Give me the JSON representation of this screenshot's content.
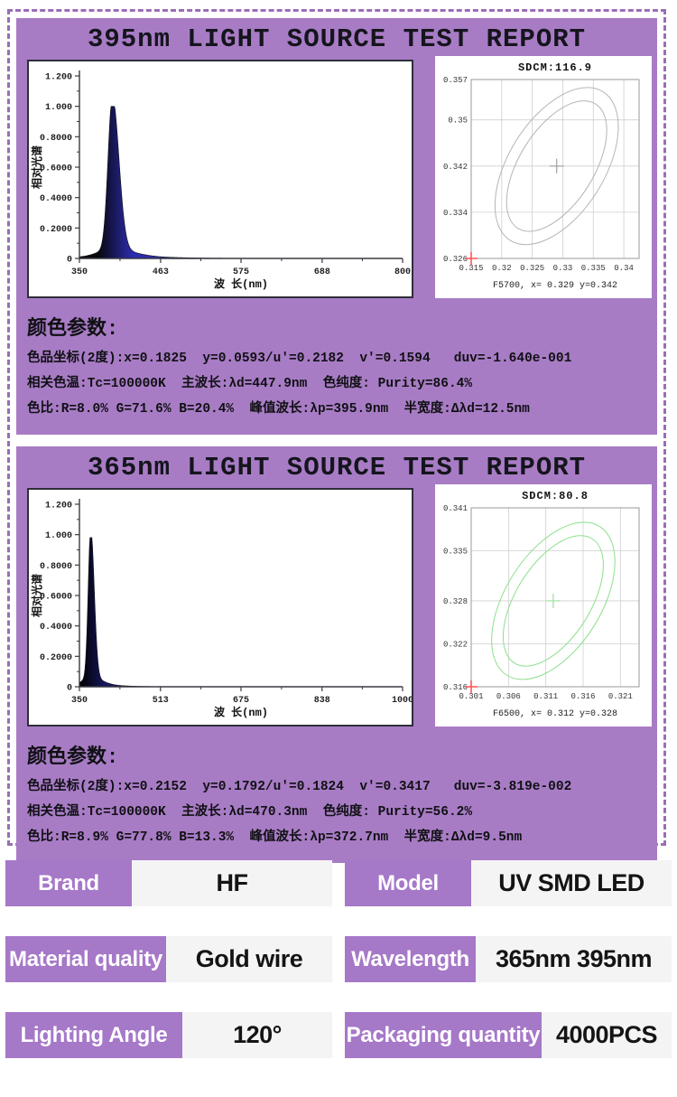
{
  "colors": {
    "section_purple": "#a87cc5",
    "table_label_purple": "#a678c8",
    "table_value_gray": "#f4f4f4",
    "dashed_border_purple": "#9b6db8"
  },
  "sections": [
    {
      "title": "395nm LIGHT SOURCE TEST REPORT",
      "params": {
        "heading": "颜色参数:",
        "lines": [
          "色品坐标(2度):x=0.1825  y=0.0593/u'=0.2182  v'=0.1594   duv=-1.640e-001",
          "相关色温:Tc=100000K  主波长:λd=447.9nm  色纯度: Purity=86.4%",
          "色比:R=8.0% G=71.6% B=20.4%  峰值波长:λp=395.9nm  半宽度:Δλd=12.5nm"
        ]
      }
    },
    {
      "title": "365nm LIGHT SOURCE TEST REPORT",
      "params": {
        "heading": "颜色参数:",
        "lines": [
          "色品坐标(2度):x=0.2152  y=0.1792/u'=0.1824  v'=0.3417   duv=-3.819e-002",
          "相关色温:Tc=100000K  主波长:λd=470.3nm  色纯度: Purity=56.2%",
          "色比:R=8.9% G=77.8% B=13.3%  峰值波长:λp=372.7nm  半宽度:Δλd=9.5nm"
        ]
      }
    }
  ],
  "chart_data": [
    {
      "id": "spec395",
      "type": "area",
      "title": "",
      "xlabel": "波 长(nm)",
      "ylabel": "相对光谱",
      "xlim": [
        350,
        800
      ],
      "xticks": [
        350,
        463,
        575,
        688,
        800
      ],
      "ylim": [
        0,
        1.2
      ],
      "yticks": [
        "0",
        "0.2000",
        "0.4000",
        "0.6000",
        "0.8000",
        "1.000",
        "1.200"
      ],
      "peak_nm": 395.9,
      "peak_value": 1.0,
      "fwhm_nm": 12.5,
      "sigma_left": 6,
      "sigma_right": 9,
      "fill": [
        "#07070d",
        "#2c2cae"
      ],
      "grid": false,
      "legend": "none"
    },
    {
      "id": "spec365",
      "type": "area",
      "title": "",
      "xlabel": "波 长(nm)",
      "ylabel": "相对光谱",
      "xlim": [
        350,
        1000
      ],
      "xticks": [
        350,
        513,
        675,
        838,
        1000
      ],
      "ylim": [
        0,
        1.2
      ],
      "yticks": [
        "0",
        "0.2000",
        "0.4000",
        "0.6000",
        "0.8000",
        "1.000",
        "1.200"
      ],
      "peak_nm": 372.7,
      "peak_value": 0.98,
      "fwhm_nm": 9.5,
      "sigma_left": 5,
      "sigma_right": 7,
      "fill": [
        "#000004",
        "#17175e"
      ],
      "grid": false,
      "legend": "none"
    },
    {
      "id": "cie395",
      "type": "scatter",
      "title": "SDCM:116.9",
      "sdcm": 116.9,
      "footer": "F5700, x= 0.329 y=0.342",
      "xlim": [
        0.315,
        0.3425
      ],
      "ylim": [
        0.326,
        0.357
      ],
      "xticks": [
        "0.315",
        "0.32",
        "0.325",
        "0.33",
        "0.335",
        "0.34"
      ],
      "yticks": [
        "0.326",
        "0.334",
        "0.342",
        "0.35",
        "0.357"
      ],
      "center": [
        0.329,
        0.342
      ],
      "origin_point": [
        0.315,
        0.326
      ],
      "ellipse_color": "#b5b5b5",
      "marker_color": "#a0a0a0",
      "origin_color": "#ff5555",
      "tilt": 32,
      "grid": true
    },
    {
      "id": "cie365",
      "type": "scatter",
      "title": "SDCM:80.8",
      "sdcm": 80.8,
      "footer": "F6500, x= 0.312 y=0.328",
      "xlim": [
        0.301,
        0.3235
      ],
      "ylim": [
        0.316,
        0.341
      ],
      "xticks": [
        "0.301",
        "0.306",
        "0.311",
        "0.316",
        "0.321"
      ],
      "yticks": [
        "0.316",
        "0.322",
        "0.328",
        "0.335",
        "0.341"
      ],
      "center": [
        0.312,
        0.328
      ],
      "origin_point": [
        0.301,
        0.316
      ],
      "ellipse_color": "#8ce08c",
      "marker_color": "#9ae09a",
      "origin_color": "#ff5555",
      "tilt": 32,
      "grid": true
    }
  ],
  "spec_table": {
    "rows": [
      [
        {
          "label": "Brand",
          "value": "HF"
        },
        {
          "label": "Model",
          "value": "UV SMD LED"
        }
      ],
      [
        {
          "label": "Material quality",
          "value": "Gold wire"
        },
        {
          "label": "Wavelength",
          "value": "365nm 395nm"
        }
      ],
      [
        {
          "label": "Lighting Angle",
          "value": "120°"
        },
        {
          "label": "Packaging quantity",
          "value": "4000PCS"
        }
      ]
    ]
  }
}
